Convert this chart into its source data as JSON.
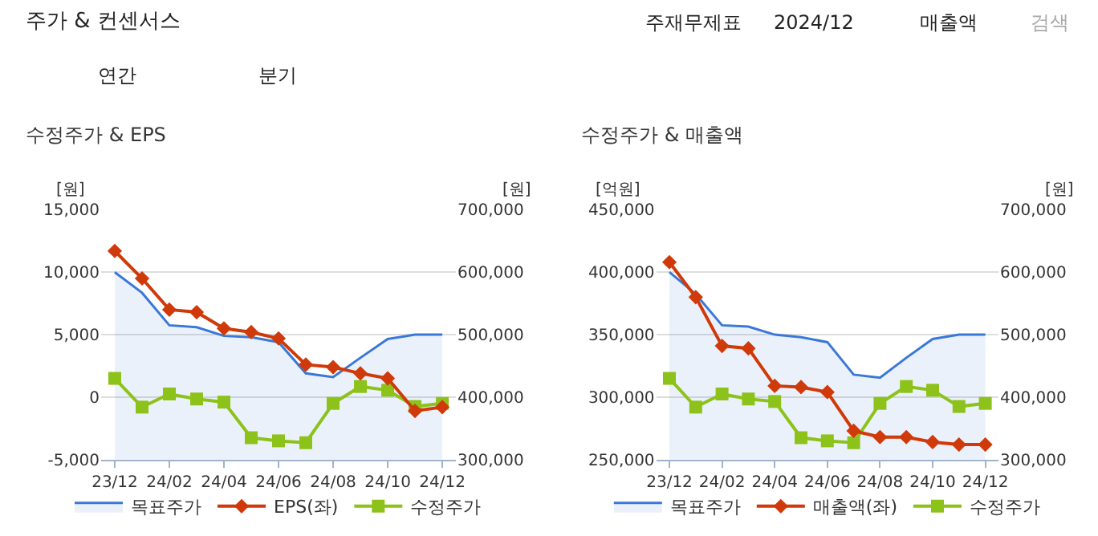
{
  "chart_data": [
    {
      "type": "line",
      "title": "수정주가 & EPS",
      "ylabel": "[원]",
      "y2label": "[원]",
      "annotations": [
        "주가 & 컨센서스",
        "주재무제표",
        "2024/12",
        "매출액",
        "검색",
        "연간",
        "분기"
      ],
      "categories": [
        "23/12",
        null,
        "24/02",
        null,
        "24/04",
        null,
        "24/06",
        null,
        "24/08",
        null,
        "24/10",
        null,
        "24/12"
      ],
      "series": [
        {
          "name": "목표주가",
          "type": "area",
          "axis": "y2",
          "color": "#3a78d8",
          "marker": "none",
          "values": [
            600000,
            567000,
            515000,
            512000,
            498000,
            496000,
            488000,
            438000,
            432000,
            463000,
            493000,
            500000,
            500000
          ]
        },
        {
          "name": "EPS(좌)",
          "color": "#d03a0a",
          "marker": "diamond",
          "values": [
            11700,
            9500,
            7000,
            6800,
            5500,
            5200,
            4700,
            2600,
            2400,
            1900,
            1500,
            -1100,
            -800
          ]
        },
        {
          "name": "수정주가",
          "axis": "y2",
          "color": "#8cc21a",
          "marker": "square",
          "values": [
            430000,
            384000,
            405000,
            397000,
            392000,
            335000,
            330000,
            327000,
            390000,
            417000,
            411000,
            385000,
            390000
          ]
        }
      ],
      "ylim": [
        -5000,
        15000
      ],
      "yticks": [
        {
          "value": -5000,
          "label": "-5,000"
        },
        0,
        {
          "value": 5000,
          "label": "5,000"
        },
        {
          "value": 10000,
          "label": "10,000"
        },
        {
          "value": 15000,
          "label": "15,000"
        }
      ],
      "y2lim": [
        300000,
        700000
      ],
      "y2ticks": [
        {
          "value": 300000,
          "label": "300,000"
        },
        {
          "value": 400000,
          "label": "400,000"
        },
        {
          "value": 500000,
          "label": "500,000"
        },
        {
          "value": 600000,
          "label": "600,000"
        },
        {
          "value": 700000,
          "label": "700,000"
        }
      ],
      "grid": "y",
      "legend": "bottom"
    },
    {
      "type": "line",
      "title": "수정주가 & 매출액",
      "ylabel": "[억원]",
      "y2label": "[원]",
      "categories": [
        "23/12",
        null,
        "24/02",
        null,
        "24/04",
        null,
        "24/06",
        null,
        "24/08",
        null,
        "24/10",
        null,
        "24/12"
      ],
      "series": [
        {
          "name": "목표주가",
          "type": "area",
          "axis": "y2",
          "color": "#3a78d8",
          "marker": "none",
          "values": [
            600000,
            565000,
            515000,
            513000,
            500000,
            496000,
            488000,
            436000,
            431000,
            463000,
            493000,
            500000,
            500000
          ]
        },
        {
          "name": "매출액(좌)",
          "color": "#d03a0a",
          "marker": "diamond",
          "values": [
            408000,
            380000,
            341000,
            339000,
            309000,
            308000,
            304000,
            273000,
            268000,
            268000,
            264000,
            262000,
            262000
          ]
        },
        {
          "name": "수정주가",
          "axis": "y2",
          "color": "#8cc21a",
          "marker": "square",
          "values": [
            430000,
            384000,
            405000,
            397000,
            393000,
            335000,
            330000,
            327000,
            390000,
            417000,
            411000,
            385000,
            390000
          ]
        }
      ],
      "ylim": [
        250000,
        450000
      ],
      "yticks": [
        {
          "value": 250000,
          "label": "250,000"
        },
        {
          "value": 300000,
          "label": "300,000"
        },
        {
          "value": 350000,
          "label": "350,000"
        },
        {
          "value": 400000,
          "label": "400,000"
        },
        {
          "value": 450000,
          "label": "450,000"
        }
      ],
      "y2lim": [
        300000,
        700000
      ],
      "y2ticks": [
        {
          "value": 300000,
          "label": "300,000"
        },
        {
          "value": 400000,
          "label": "400,000"
        },
        {
          "value": 500000,
          "label": "500,000"
        },
        {
          "value": 600000,
          "label": "600,000"
        },
        {
          "value": 700000,
          "label": "700,000"
        }
      ],
      "grid": "y",
      "legend": "bottom"
    }
  ]
}
